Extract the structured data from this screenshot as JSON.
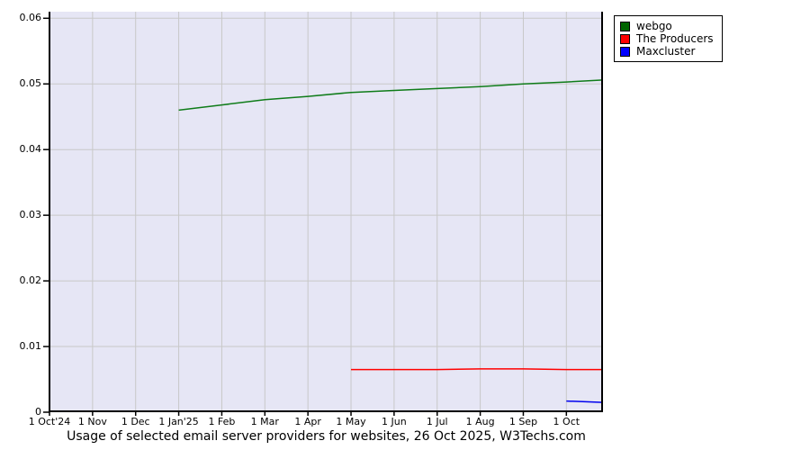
{
  "caption": "Usage of selected email server providers for websites, 26 Oct 2025, W3Techs.com",
  "chart_data": {
    "type": "line",
    "title": "Usage of selected email server providers for websites, 26 Oct 2025, W3Techs.com",
    "x_axis": {
      "unit": "months since 1 Oct 2024",
      "domain": [
        0,
        12.85
      ],
      "tick_positions": [
        0,
        1,
        2,
        3,
        4,
        5,
        6,
        7,
        8,
        9,
        10,
        11,
        12
      ],
      "tick_labels": [
        "1 Oct'24",
        "1 Nov",
        "1 Dec",
        "1 Jan'25",
        "1 Feb",
        "1 Mar",
        "1 Apr",
        "1 May",
        "1 Jun",
        "1 Jul",
        "1 Aug",
        "1 Sep",
        "1 Oct"
      ]
    },
    "y_axis": {
      "range": [
        0,
        0.06
      ],
      "plot_max": 0.061,
      "tick_values": [
        0.06,
        0.05,
        0.04,
        0.03,
        0.02,
        0.01,
        0
      ],
      "tick_labels": [
        "0.06",
        "0.05",
        "0.04",
        "0.03",
        "0.02",
        "0.01",
        "0"
      ]
    },
    "grid": true,
    "legend_position": "outside-top-right",
    "colors": {
      "plot_background": "#e6e6f5",
      "grid": "#c8c8c8",
      "axis": "#000000"
    },
    "series": [
      {
        "name": "webgo",
        "line_color": "#0f7c19",
        "swatch_color": "#006400",
        "points": [
          [
            3,
            0.046
          ],
          [
            4,
            0.0468
          ],
          [
            5,
            0.0476
          ],
          [
            6,
            0.0481
          ],
          [
            7,
            0.0487
          ],
          [
            8,
            0.049
          ],
          [
            9,
            0.0493
          ],
          [
            10,
            0.0496
          ],
          [
            11,
            0.05
          ],
          [
            12,
            0.0503
          ],
          [
            12.85,
            0.0506
          ]
        ]
      },
      {
        "name": "The Producers",
        "line_color": "#ff0000",
        "swatch_color": "#ff0000",
        "points": [
          [
            7,
            0.0065
          ],
          [
            8,
            0.0065
          ],
          [
            9,
            0.0065
          ],
          [
            10,
            0.0066
          ],
          [
            11,
            0.0066
          ],
          [
            12,
            0.0065
          ],
          [
            12.85,
            0.0065
          ]
        ]
      },
      {
        "name": "Maxcluster",
        "line_color": "#0000ee",
        "swatch_color": "#0000ff",
        "points": [
          [
            12,
            0.0017
          ],
          [
            12.85,
            0.0015
          ]
        ]
      }
    ]
  }
}
